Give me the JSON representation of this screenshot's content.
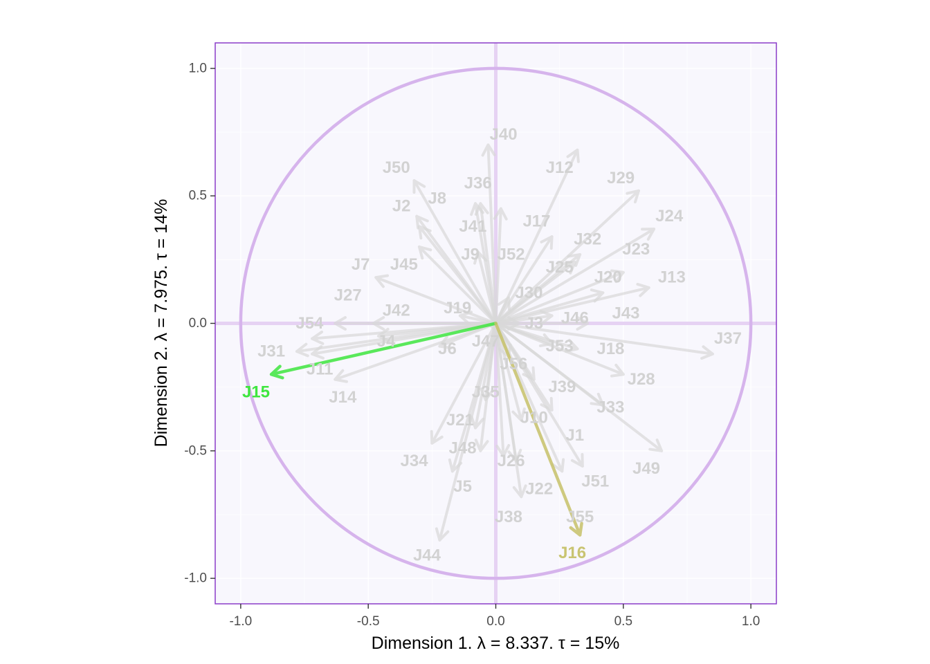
{
  "chart_data": {
    "type": "correlation-circle",
    "xlabel": "Dimension 1.   λ = 8.337.  τ = 15%",
    "ylabel": "Dimension 2.   λ = 7.975.  τ = 14%",
    "xlim": [
      -1.1,
      1.1
    ],
    "ylim": [
      -1.1,
      1.1
    ],
    "x_ticks": [
      -1.0,
      -0.5,
      0.0,
      0.5,
      1.0
    ],
    "y_ticks": [
      -1.0,
      -0.5,
      0.0,
      0.5,
      1.0
    ],
    "x_tick_labels": [
      "-1.0",
      "-0.5",
      "0.0",
      "0.5",
      "1.0"
    ],
    "y_tick_labels": [
      "-1.0",
      "-0.5",
      "0.0",
      "0.5",
      "1.0"
    ],
    "colors": {
      "panel_background": "#f8f7fd",
      "panel_border": "#8a3cc8",
      "circle": "#d6b4ec",
      "axis_lines": "#e6d2f3",
      "muted_arrow": "#d9d9d9",
      "muted_label": "#d2d2d2",
      "J15": "#3fe63f",
      "J16": "#c7c26a"
    },
    "variables": [
      {
        "name": "J1",
        "x": 0.22,
        "y": -0.34,
        "lx": 0.31,
        "ly": -0.44
      },
      {
        "name": "J2",
        "x": -0.31,
        "y": 0.42,
        "lx": -0.37,
        "ly": 0.46
      },
      {
        "name": "J3",
        "x": 0.09,
        "y": 0.0,
        "lx": 0.15,
        "ly": 0.0
      },
      {
        "name": "J4",
        "x": -0.46,
        "y": -0.05,
        "lx": -0.43,
        "ly": -0.07
      },
      {
        "name": "J5",
        "x": -0.17,
        "y": -0.58,
        "lx": -0.13,
        "ly": -0.64
      },
      {
        "name": "J6",
        "x": -0.22,
        "y": -0.09,
        "lx": -0.19,
        "ly": -0.1
      },
      {
        "name": "J7",
        "x": -0.47,
        "y": 0.18,
        "lx": -0.53,
        "ly": 0.23
      },
      {
        "name": "J8",
        "x": -0.3,
        "y": 0.38,
        "lx": -0.23,
        "ly": 0.49
      },
      {
        "name": "J9",
        "x": -0.07,
        "y": 0.28,
        "lx": -0.1,
        "ly": 0.27
      },
      {
        "name": "J10",
        "x": 0.1,
        "y": -0.38,
        "lx": 0.15,
        "ly": -0.37
      },
      {
        "name": "J11",
        "x": -0.72,
        "y": -0.12,
        "lx": -0.69,
        "ly": -0.18
      },
      {
        "name": "J12",
        "x": 0.32,
        "y": 0.68,
        "lx": 0.25,
        "ly": 0.61
      },
      {
        "name": "J13",
        "x": 0.6,
        "y": 0.14,
        "lx": 0.69,
        "ly": 0.18
      },
      {
        "name": "J14",
        "x": -0.63,
        "y": -0.22,
        "lx": -0.6,
        "ly": -0.29
      },
      {
        "name": "J15",
        "x": -0.88,
        "y": -0.2,
        "lx": -0.94,
        "ly": -0.27
      },
      {
        "name": "J16",
        "x": 0.33,
        "y": -0.83,
        "lx": 0.3,
        "ly": -0.9
      },
      {
        "name": "J17",
        "x": 0.22,
        "y": 0.34,
        "lx": 0.16,
        "ly": 0.4
      },
      {
        "name": "J18",
        "x": 0.32,
        "y": -0.1,
        "lx": 0.45,
        "ly": -0.1
      },
      {
        "name": "J19",
        "x": -0.14,
        "y": 0.03,
        "lx": -0.15,
        "ly": 0.06
      },
      {
        "name": "J20",
        "x": 0.42,
        "y": 0.12,
        "lx": 0.44,
        "ly": 0.18
      },
      {
        "name": "J21",
        "x": -0.08,
        "y": -0.41,
        "lx": -0.14,
        "ly": -0.38
      },
      {
        "name": "J22",
        "x": 0.1,
        "y": -0.68,
        "lx": 0.17,
        "ly": -0.65
      },
      {
        "name": "J23",
        "x": 0.5,
        "y": 0.2,
        "lx": 0.55,
        "ly": 0.29
      },
      {
        "name": "J24",
        "x": 0.62,
        "y": 0.37,
        "lx": 0.68,
        "ly": 0.42
      },
      {
        "name": "J25",
        "x": 0.31,
        "y": 0.24,
        "lx": 0.25,
        "ly": 0.22
      },
      {
        "name": "J26",
        "x": 0.08,
        "y": -0.54,
        "lx": 0.06,
        "ly": -0.54
      },
      {
        "name": "J27",
        "x": -0.63,
        "y": 0.0,
        "lx": -0.58,
        "ly": 0.11
      },
      {
        "name": "J28",
        "x": 0.5,
        "y": -0.2,
        "lx": 0.57,
        "ly": -0.22
      },
      {
        "name": "J29",
        "x": 0.56,
        "y": 0.52,
        "lx": 0.49,
        "ly": 0.57
      },
      {
        "name": "J30",
        "x": 0.05,
        "y": 0.1,
        "lx": 0.13,
        "ly": 0.12
      },
      {
        "name": "J31",
        "x": -0.78,
        "y": -0.11,
        "lx": -0.88,
        "ly": -0.11
      },
      {
        "name": "J32",
        "x": 0.33,
        "y": 0.27,
        "lx": 0.36,
        "ly": 0.33
      },
      {
        "name": "J33",
        "x": 0.42,
        "y": -0.32,
        "lx": 0.45,
        "ly": -0.33
      },
      {
        "name": "J34",
        "x": -0.25,
        "y": -0.47,
        "lx": -0.32,
        "ly": -0.54
      },
      {
        "name": "J35",
        "x": -0.04,
        "y": -0.3,
        "lx": -0.04,
        "ly": -0.27
      },
      {
        "name": "J36",
        "x": -0.06,
        "y": 0.47,
        "lx": -0.07,
        "ly": 0.55
      },
      {
        "name": "J37",
        "x": 0.85,
        "y": -0.12,
        "lx": 0.91,
        "ly": -0.06
      },
      {
        "name": "J38",
        "x": 0.03,
        "y": -0.52,
        "lx": 0.05,
        "ly": -0.76
      },
      {
        "name": "J39",
        "x": 0.15,
        "y": -0.22,
        "lx": 0.26,
        "ly": -0.25
      },
      {
        "name": "J40",
        "x": -0.03,
        "y": 0.7,
        "lx": 0.03,
        "ly": 0.74
      },
      {
        "name": "J41",
        "x": -0.08,
        "y": 0.47,
        "lx": -0.09,
        "ly": 0.38
      },
      {
        "name": "J42",
        "x": -0.48,
        "y": 0.0,
        "lx": -0.39,
        "ly": 0.05
      },
      {
        "name": "J43",
        "x": 0.36,
        "y": 0.0,
        "lx": 0.51,
        "ly": 0.04
      },
      {
        "name": "J44",
        "x": -0.22,
        "y": -0.85,
        "lx": -0.27,
        "ly": -0.91
      },
      {
        "name": "J45",
        "x": -0.3,
        "y": 0.3,
        "lx": -0.36,
        "ly": 0.23
      },
      {
        "name": "J46",
        "x": 0.22,
        "y": 0.03,
        "lx": 0.31,
        "ly": 0.02
      },
      {
        "name": "J47",
        "x": 0.01,
        "y": -0.04,
        "lx": -0.04,
        "ly": -0.07
      },
      {
        "name": "J48",
        "x": -0.06,
        "y": -0.5,
        "lx": -0.13,
        "ly": -0.49
      },
      {
        "name": "J49",
        "x": 0.65,
        "y": -0.5,
        "lx": 0.59,
        "ly": -0.57
      },
      {
        "name": "J50",
        "x": -0.32,
        "y": 0.56,
        "lx": -0.39,
        "ly": 0.61
      },
      {
        "name": "J51",
        "x": 0.34,
        "y": -0.56,
        "lx": 0.39,
        "ly": -0.62
      },
      {
        "name": "J52",
        "x": 0.02,
        "y": 0.45,
        "lx": 0.06,
        "ly": 0.27
      },
      {
        "name": "J53",
        "x": 0.22,
        "y": -0.08,
        "lx": 0.25,
        "ly": -0.09
      },
      {
        "name": "J54",
        "x": -0.72,
        "y": -0.06,
        "lx": -0.73,
        "ly": 0.0
      },
      {
        "name": "J55",
        "x": 0.26,
        "y": -0.58,
        "lx": 0.33,
        "ly": -0.76
      },
      {
        "name": "J56",
        "x": 0.05,
        "y": -0.13,
        "lx": 0.07,
        "ly": -0.16
      }
    ]
  }
}
